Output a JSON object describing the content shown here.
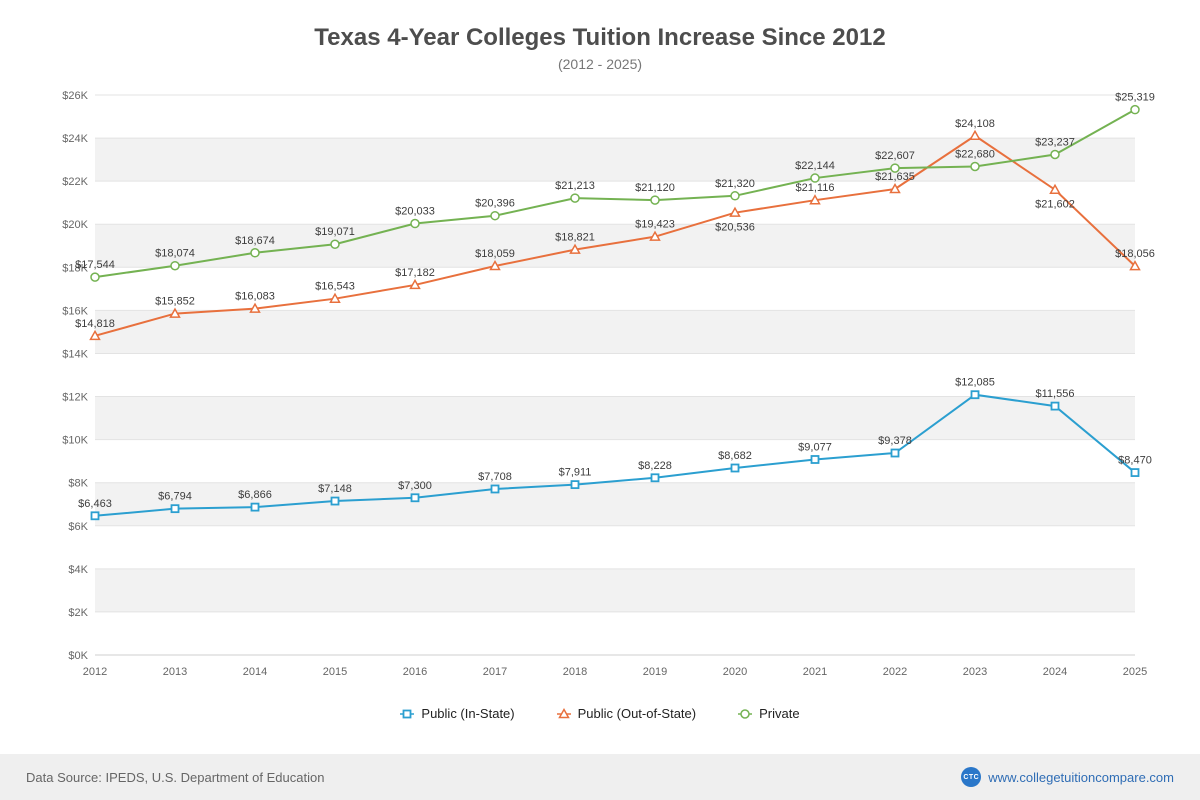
{
  "chart_data": {
    "type": "line",
    "title": "Texas 4-Year Colleges Tuition Increase Since 2012",
    "subtitle": "(2012 - 2025)",
    "categories": [
      "2012",
      "2013",
      "2014",
      "2015",
      "2016",
      "2017",
      "2018",
      "2019",
      "2020",
      "2021",
      "2022",
      "2023",
      "2024",
      "2025"
    ],
    "xlabel": "",
    "ylabel": "",
    "ylim": [
      0,
      26000
    ],
    "ytick_step": 2000,
    "grid": true,
    "legend_position": "bottom",
    "band_color": "#f2f2f2",
    "gridline_color": "#e3e3e3",
    "series": [
      {
        "name": "Public (In-State)",
        "marker": "square",
        "color": "#2b9fd0",
        "values": [
          6463,
          6794,
          6866,
          7148,
          7300,
          7708,
          7911,
          8228,
          8682,
          9077,
          9378,
          12085,
          11556,
          8470
        ]
      },
      {
        "name": "Public (Out-of-State)",
        "marker": "triangle",
        "color": "#e8703d",
        "values": [
          14818,
          15852,
          16083,
          16543,
          17182,
          18059,
          18821,
          19423,
          20536,
          21116,
          21635,
          24108,
          21602,
          18056
        ]
      },
      {
        "name": "Private",
        "marker": "circle",
        "color": "#74b252",
        "values": [
          17544,
          18074,
          18674,
          19071,
          20033,
          20396,
          21213,
          21120,
          21320,
          22144,
          22607,
          22680,
          23237,
          25319
        ]
      }
    ]
  },
  "footer": {
    "source": "Data Source: IPEDS, U.S. Department of Education",
    "logo_text": "CTC",
    "site": "www.collegetuitioncompare.com"
  }
}
